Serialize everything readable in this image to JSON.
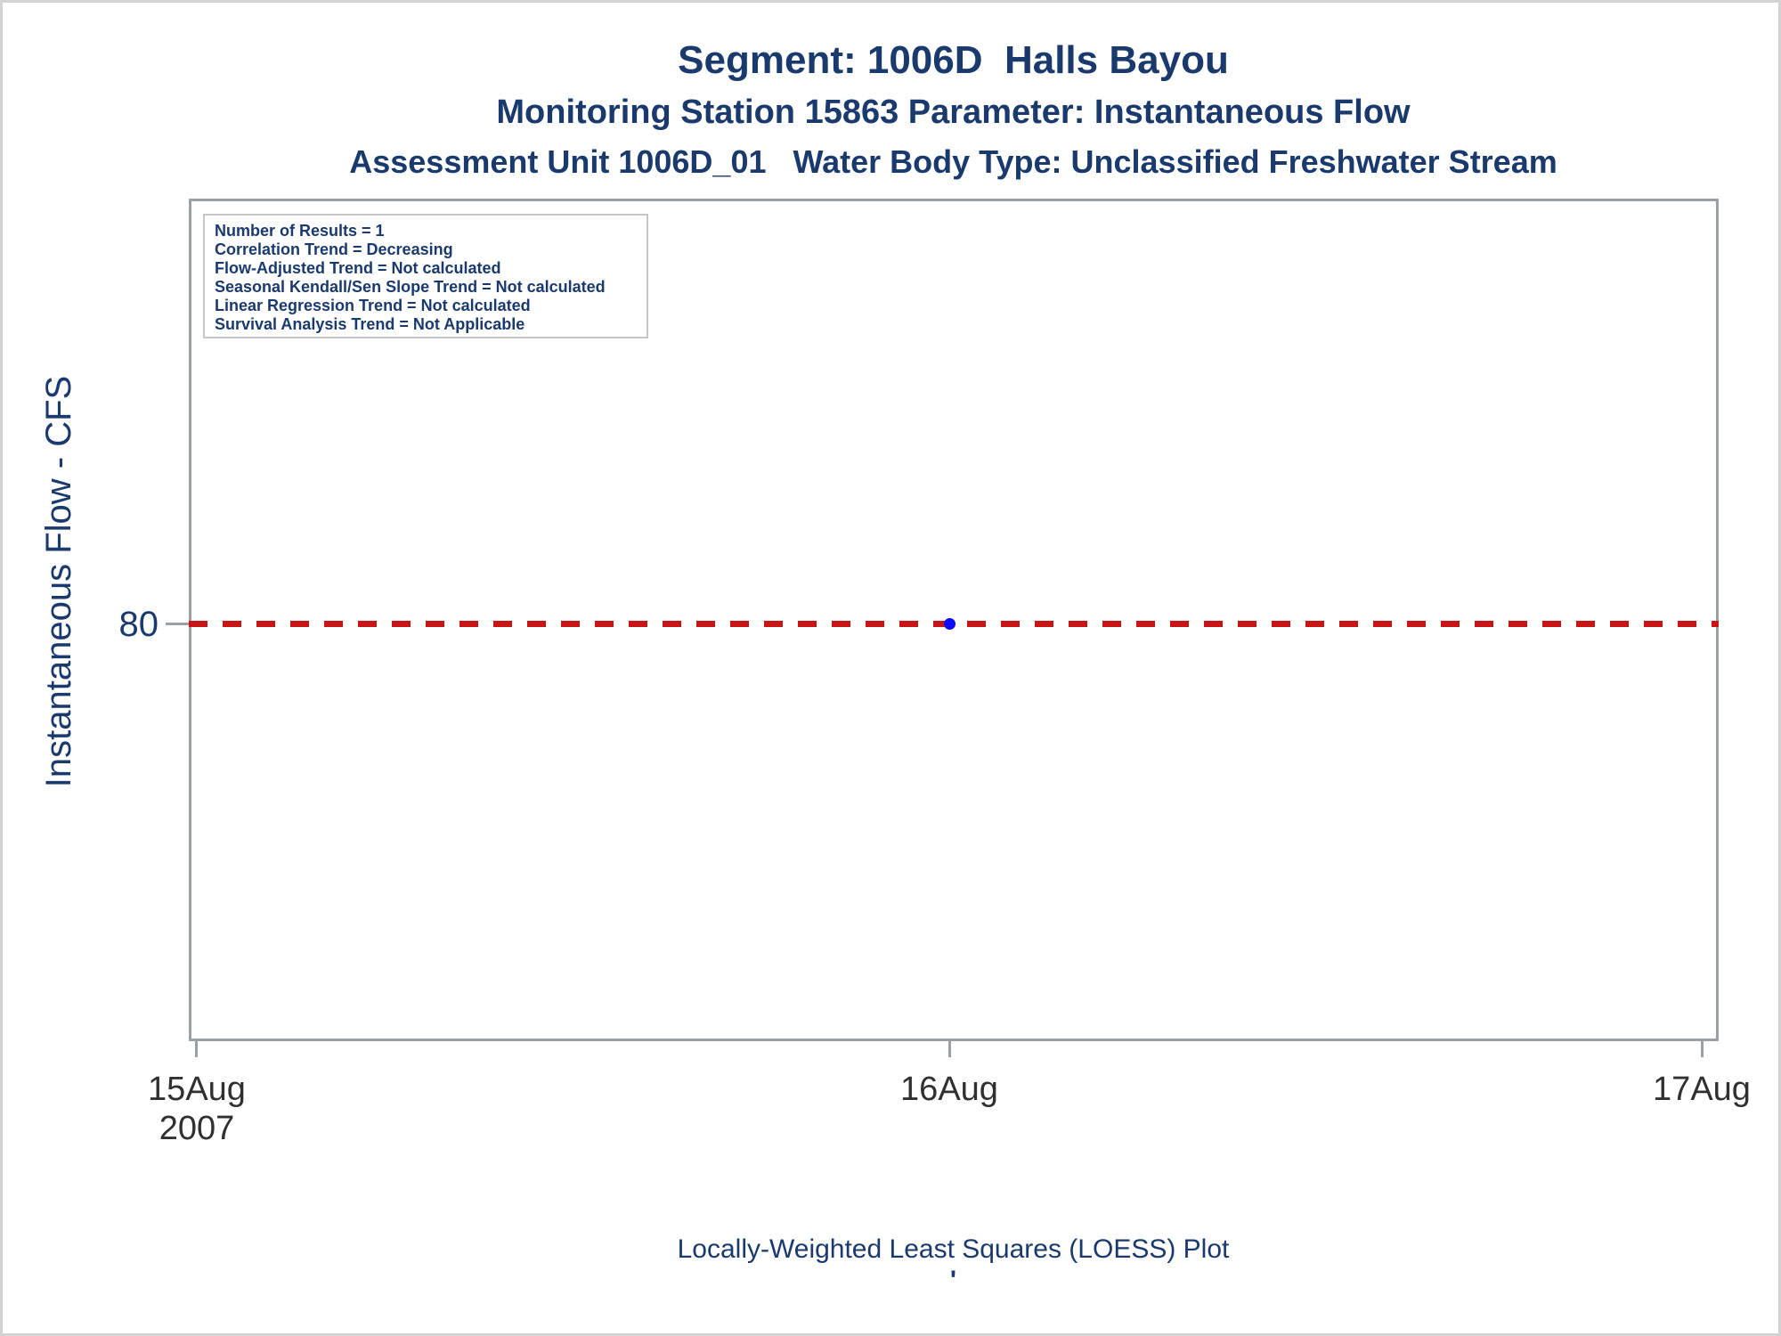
{
  "titles": {
    "line1": "Segment: 1006D  Halls Bayou",
    "line2": "Monitoring Station 15863 Parameter: Instantaneous Flow",
    "line3": "Assessment Unit 1006D_01   Water Body Type: Unclassified Freshwater Stream"
  },
  "stats_box": {
    "lines": [
      "Number of Results = 1",
      "Correlation Trend = Decreasing",
      "Flow-Adjusted Trend = Not calculated",
      "Seasonal Kendall/Sen Slope Trend = Not calculated",
      "Linear Regression Trend = Not calculated",
      "Survival Analysis Trend = Not Applicable"
    ]
  },
  "y_axis": {
    "label": "Instantaneous Flow - CFS",
    "tick": "80"
  },
  "x_axis": {
    "tick1_line1": "15Aug",
    "tick1_line2": "2007",
    "tick2": "16Aug",
    "tick3": "17Aug"
  },
  "footer": {
    "caption": "Locally-Weighted Least Squares (LOESS) Plot",
    "mark": "'"
  },
  "colors": {
    "title_navy": "#1a3a6e",
    "axis_gray": "#9aa0a6",
    "reference_red": "#c81414",
    "marker_blue": "#0a0aff",
    "x_label_gray": "#303030",
    "outer_border": "#d3d3d3",
    "stats_border": "#c6c6c6"
  },
  "chart_data": {
    "type": "scatter",
    "title": "Segment: 1006D  Halls Bayou",
    "subtitle": "Monitoring Station 15863 Parameter: Instantaneous Flow",
    "subtitle2": "Assessment Unit 1006D_01   Water Body Type: Unclassified Freshwater Stream",
    "caption": "Locally-Weighted Least Squares (LOESS) Plot",
    "xlabel": "",
    "ylabel": "Instantaneous Flow - CFS",
    "x_tick_labels": [
      "15Aug 2007",
      "16Aug",
      "17Aug"
    ],
    "y_tick_labels": [
      "80"
    ],
    "grid": false,
    "legend_position": "none",
    "series": [
      {
        "name": "observed-data-points",
        "type": "scatter",
        "marker": "filled-circle",
        "color": "#0a0aff",
        "points": [
          {
            "x": "16Aug2007",
            "y": 80
          }
        ]
      },
      {
        "name": "loess-fit-line",
        "type": "line",
        "style": "dashed",
        "color": "#c81414",
        "points": [
          {
            "x": "15Aug2007",
            "y": 80
          },
          {
            "x": "17Aug2007",
            "y": 80
          }
        ]
      }
    ],
    "annotations": [
      "Number of Results = 1",
      "Correlation Trend = Decreasing",
      "Flow-Adjusted Trend = Not calculated",
      "Seasonal Kendall/Sen Slope Trend = Not calculated",
      "Linear Regression Trend = Not calculated",
      "Survival Analysis Trend = Not Applicable"
    ]
  }
}
